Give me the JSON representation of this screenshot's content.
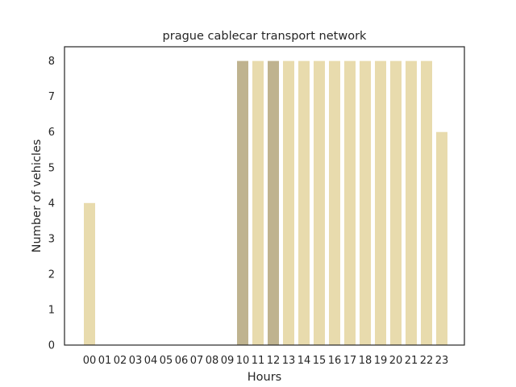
{
  "chart_data": {
    "type": "bar",
    "title": "prague cablecar transport network",
    "xlabel": "Hours",
    "ylabel": "Number of vehicles",
    "categories": [
      "00",
      "01",
      "02",
      "03",
      "04",
      "05",
      "06",
      "07",
      "08",
      "09",
      "10",
      "11",
      "12",
      "13",
      "14",
      "15",
      "16",
      "17",
      "18",
      "19",
      "20",
      "21",
      "22",
      "23"
    ],
    "values": [
      4,
      0,
      0,
      0,
      0,
      0,
      0,
      0,
      0,
      0,
      8,
      8,
      8,
      8,
      8,
      8,
      8,
      8,
      8,
      8,
      8,
      8,
      8,
      6
    ],
    "highlighted": [
      "10",
      "12"
    ],
    "yticks": [
      0,
      1,
      2,
      3,
      4,
      5,
      6,
      7,
      8
    ],
    "ylim": [
      0,
      8.4
    ],
    "grid": false,
    "colors": {
      "bar": "#e8dbad",
      "bar_highlight": "#bfb38f",
      "frame": "#262626",
      "text": "#262626"
    }
  }
}
